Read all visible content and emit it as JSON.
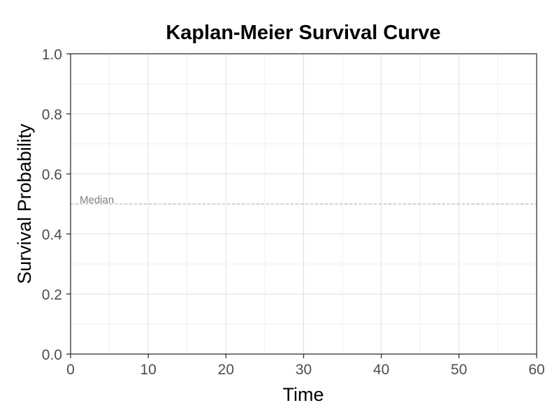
{
  "chart_data": {
    "type": "line",
    "title": "Kaplan-Meier Survival Curve",
    "xlabel": "Time",
    "ylabel": "Survival Probability",
    "xlim": [
      0,
      60
    ],
    "ylim": [
      0,
      1
    ],
    "x_ticks": [
      0,
      10,
      20,
      30,
      40,
      50,
      60
    ],
    "y_ticks": [
      0,
      0.2,
      0.4,
      0.6,
      0.8,
      1.0
    ],
    "y_tick_labels": [
      "0.0",
      "0.2",
      "0.4",
      "0.6",
      "0.8",
      "1.0"
    ],
    "grid": true,
    "series": [],
    "reference_lines": [
      {
        "orientation": "horizontal",
        "y": 0.5,
        "label": "Median",
        "style": "dashed",
        "color": "#a6a6a6"
      }
    ],
    "colors": {
      "grid_major": "#dedede",
      "grid_minor": "#efefef",
      "axis": "#333333",
      "tick_text": "#4d4d4d"
    }
  }
}
